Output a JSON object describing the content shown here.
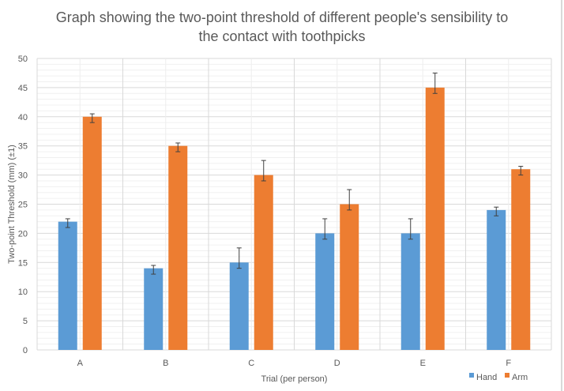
{
  "chart_data": {
    "type": "bar",
    "title": "Graph showing the two-point threshold of different people's sensibility to the contact with toothpicks",
    "title_lines": [
      "Graph showing the two-point threshold of different people's sensibility to",
      "the contact with toothpicks"
    ],
    "xlabel": "Trial (per person)",
    "ylabel": "Two-point Threshold (mm) (±1)",
    "categories": [
      "A",
      "B",
      "C",
      "D",
      "E",
      "F"
    ],
    "ylim": [
      0,
      50
    ],
    "yticks": [
      0,
      5,
      10,
      15,
      20,
      25,
      30,
      35,
      40,
      45,
      50
    ],
    "grid": true,
    "legend_position": "bottom-right",
    "series": [
      {
        "name": "Hand",
        "color": "#5b9bd5",
        "values": [
          22,
          14,
          15,
          20,
          20,
          24
        ],
        "error_plus": [
          0.5,
          0.5,
          2.5,
          2.5,
          2.5,
          0.5
        ],
        "error_minus": [
          1,
          1,
          1,
          1,
          1,
          1
        ]
      },
      {
        "name": "Arm",
        "color": "#ed7d31",
        "values": [
          40,
          35,
          30,
          25,
          45,
          31
        ],
        "error_plus": [
          0.5,
          0.5,
          2.5,
          2.5,
          2.5,
          0.5
        ],
        "error_minus": [
          1,
          1,
          1,
          1,
          1,
          1
        ]
      }
    ]
  }
}
